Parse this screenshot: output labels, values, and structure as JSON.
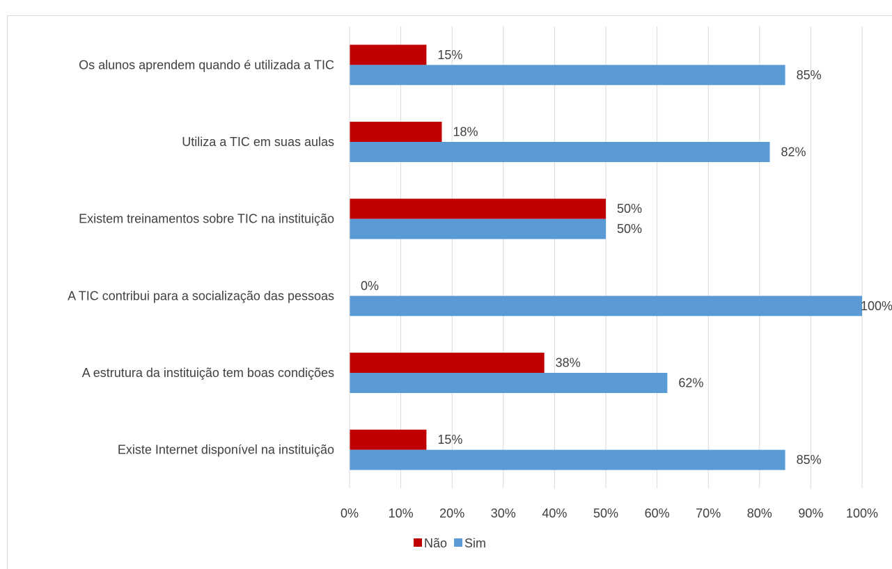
{
  "chart_data": {
    "type": "bar",
    "orientation": "horizontal",
    "title": "",
    "xlabel": "",
    "ylabel": "",
    "categories": [
      "Os alunos aprendem quando é utilizada a TIC",
      "Utiliza a TIC em suas aulas",
      "Existem treinamentos sobre TIC na instituição",
      "A TIC contribui para a socialização das pessoas",
      "A estrutura da instituição tem boas condições",
      "Existe Internet disponível na instituição"
    ],
    "series": [
      {
        "name": "Não",
        "color": "#c00000",
        "values": [
          15,
          18,
          50,
          0,
          38,
          15
        ],
        "labels": [
          "15%",
          "18%",
          "50%",
          "0%",
          "38%",
          "15%"
        ]
      },
      {
        "name": "Sim",
        "color": "#5b9bd5",
        "values": [
          85,
          82,
          50,
          100,
          62,
          85
        ],
        "labels": [
          "85%",
          "82%",
          "50%",
          "100%",
          "62%",
          "85%"
        ]
      }
    ],
    "xlim": [
      0,
      100
    ],
    "xticks": [
      "0%",
      "10%",
      "20%",
      "30%",
      "40%",
      "50%",
      "60%",
      "70%",
      "80%",
      "90%",
      "100%"
    ],
    "grid": true,
    "legend": "bottom"
  }
}
